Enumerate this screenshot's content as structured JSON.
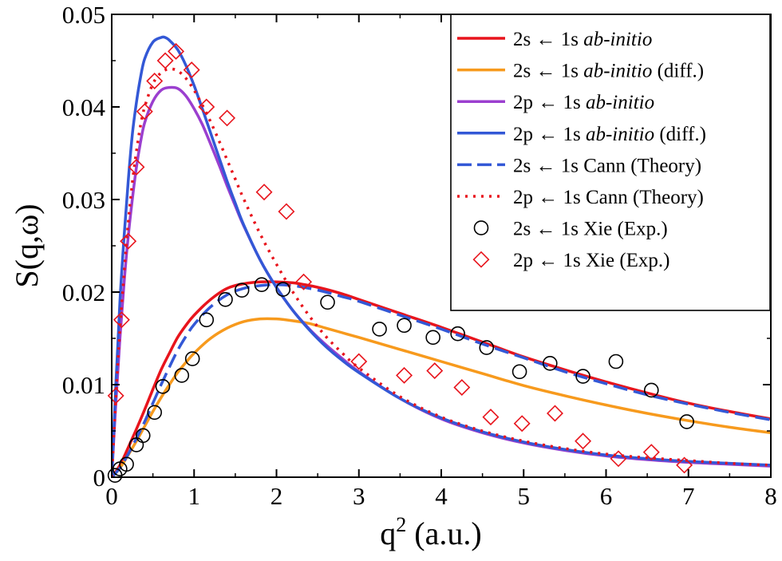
{
  "chart_data": {
    "type": "line",
    "xlabel": "q",
    "xlabel_superscript": "2",
    "xlabel_suffix": " (a.u.)",
    "ylabel": "S(q,ω)",
    "xlim": [
      0,
      8
    ],
    "ylim": [
      0,
      0.05
    ],
    "xticks": [
      0,
      1,
      2,
      3,
      4,
      5,
      6,
      7,
      8
    ],
    "xtick_labels": [
      "0",
      "1",
      "2",
      "3",
      "4",
      "5",
      "6",
      "7",
      "8"
    ],
    "yticks": [
      0,
      0.01,
      0.02,
      0.03,
      0.04,
      0.05
    ],
    "ytick_labels": [
      "0",
      "0.01",
      "0.02",
      "0.03",
      "0.04",
      "0.05"
    ],
    "grid": false,
    "legend_position": "top-right",
    "series": [
      {
        "name": "2s ← 1s ab-initio",
        "name_parts": [
          "2s ← 1s ",
          "ab-initio",
          ""
        ],
        "kind": "line",
        "style": "solid",
        "color": "#e8141c",
        "x": [
          0,
          0.1,
          0.2,
          0.3,
          0.4,
          0.5,
          0.6,
          0.7,
          0.8,
          0.9,
          1.0,
          1.2,
          1.4,
          1.6,
          1.8,
          2.0,
          2.2,
          2.4,
          2.6,
          2.8,
          3.0,
          3.5,
          4.0,
          4.5,
          5.0,
          5.5,
          6.0,
          6.5,
          7.0,
          7.5,
          8.0
        ],
        "y": [
          0,
          0.0013,
          0.0032,
          0.0052,
          0.0073,
          0.0095,
          0.0116,
          0.0134,
          0.0151,
          0.0164,
          0.0175,
          0.0192,
          0.0204,
          0.0209,
          0.0211,
          0.0211,
          0.021,
          0.0207,
          0.0203,
          0.0198,
          0.0192,
          0.0177,
          0.0162,
          0.0146,
          0.013,
          0.0116,
          0.0103,
          0.0091,
          0.008,
          0.0071,
          0.0063
        ]
      },
      {
        "name": "2s ← 1s ab-initio (diff.)",
        "name_parts": [
          "2s ← 1s ",
          "ab-initio",
          " (diff.)"
        ],
        "kind": "line",
        "style": "solid",
        "color": "#f79a1d",
        "x": [
          0,
          0.1,
          0.2,
          0.3,
          0.4,
          0.5,
          0.6,
          0.7,
          0.8,
          0.9,
          1.0,
          1.2,
          1.4,
          1.6,
          1.8,
          2.0,
          2.2,
          2.4,
          2.6,
          2.8,
          3.0,
          3.5,
          4.0,
          4.5,
          5.0,
          5.5,
          6.0,
          6.5,
          7.0,
          7.5,
          8.0
        ],
        "y": [
          0,
          0.001,
          0.0024,
          0.0039,
          0.0055,
          0.0071,
          0.0086,
          0.01,
          0.0113,
          0.0124,
          0.0134,
          0.015,
          0.0161,
          0.0168,
          0.0171,
          0.0171,
          0.0169,
          0.0166,
          0.0161,
          0.0156,
          0.0151,
          0.0138,
          0.0125,
          0.0112,
          0.0099,
          0.0088,
          0.0078,
          0.0069,
          0.0061,
          0.0054,
          0.0048
        ]
      },
      {
        "name": "2p ← 1s ab-initio",
        "name_parts": [
          "2p ← 1s ",
          "ab-initio",
          ""
        ],
        "kind": "line",
        "style": "solid",
        "color": "#9b3fcf",
        "x": [
          0,
          0.05,
          0.1,
          0.15,
          0.2,
          0.25,
          0.3,
          0.35,
          0.4,
          0.5,
          0.6,
          0.7,
          0.8,
          0.9,
          1.0,
          1.1,
          1.2,
          1.3,
          1.4,
          1.5,
          1.6,
          1.8,
          2.0,
          2.2,
          2.4,
          2.6,
          2.8,
          3.0,
          3.5,
          4.0,
          4.5,
          5.0,
          5.5,
          6.0,
          6.5,
          7.0,
          7.5,
          8.0
        ],
        "y": [
          0,
          0.008,
          0.015,
          0.021,
          0.026,
          0.03,
          0.0335,
          0.0362,
          0.0383,
          0.0406,
          0.0418,
          0.0421,
          0.042,
          0.0412,
          0.0398,
          0.0381,
          0.036,
          0.0338,
          0.0315,
          0.0293,
          0.0272,
          0.0235,
          0.0205,
          0.018,
          0.016,
          0.0143,
          0.0128,
          0.0114,
          0.0085,
          0.0063,
          0.0048,
          0.0037,
          0.0029,
          0.0023,
          0.0019,
          0.0016,
          0.0014,
          0.0012
        ]
      },
      {
        "name": "2p ← 1s ab-initio (diff.)",
        "name_parts": [
          "2p ← 1s ",
          "ab-initio",
          " (diff.)"
        ],
        "kind": "line",
        "style": "solid",
        "color": "#3358d6",
        "x": [
          0,
          0.05,
          0.1,
          0.15,
          0.2,
          0.25,
          0.3,
          0.35,
          0.4,
          0.5,
          0.6,
          0.65,
          0.7,
          0.8,
          0.9,
          1.0,
          1.1,
          1.2,
          1.3,
          1.4,
          1.5,
          1.6,
          1.8,
          2.0,
          2.2,
          2.4,
          2.6,
          2.8,
          3.0,
          3.5,
          4.0,
          4.5,
          5.0,
          5.5,
          6.0,
          6.5,
          7.0,
          7.5,
          8.0
        ],
        "y": [
          0,
          0.01,
          0.019,
          0.026,
          0.032,
          0.037,
          0.0405,
          0.0432,
          0.0452,
          0.047,
          0.0475,
          0.0475,
          0.0472,
          0.0462,
          0.0445,
          0.0423,
          0.0398,
          0.0372,
          0.0346,
          0.032,
          0.0296,
          0.0273,
          0.0235,
          0.0205,
          0.018,
          0.0159,
          0.0141,
          0.0126,
          0.0113,
          0.0085,
          0.0064,
          0.0049,
          0.0038,
          0.003,
          0.0024,
          0.002,
          0.0017,
          0.0015,
          0.0013
        ]
      },
      {
        "name": "2s ← 1s Cann (Theory)",
        "name_parts": [
          "2s ← 1s Cann (Theory)",
          "",
          ""
        ],
        "kind": "line",
        "style": "dashed",
        "color": "#3358d6",
        "x": [
          0,
          0.1,
          0.2,
          0.3,
          0.4,
          0.5,
          0.6,
          0.7,
          0.8,
          0.9,
          1.0,
          1.2,
          1.4,
          1.6,
          1.8,
          2.0,
          2.2,
          2.4,
          2.6,
          2.8,
          3.0,
          3.5,
          4.0,
          4.5,
          5.0,
          5.5,
          6.0,
          6.5,
          7.0,
          7.5,
          8.0
        ],
        "y": [
          0,
          0.001,
          0.0025,
          0.0042,
          0.006,
          0.008,
          0.01,
          0.0119,
          0.0137,
          0.0152,
          0.0165,
          0.0184,
          0.0197,
          0.0204,
          0.0207,
          0.0208,
          0.0207,
          0.0204,
          0.02,
          0.0195,
          0.019,
          0.0175,
          0.016,
          0.0144,
          0.0129,
          0.0114,
          0.0101,
          0.0089,
          0.0079,
          0.007,
          0.0062
        ]
      },
      {
        "name": "2p ← 1s Cann (Theory)",
        "name_parts": [
          "2p ← 1s Cann (Theory)",
          "",
          ""
        ],
        "kind": "line",
        "style": "dotted",
        "color": "#e8141c",
        "x": [
          0,
          0.05,
          0.1,
          0.15,
          0.2,
          0.25,
          0.3,
          0.35,
          0.4,
          0.5,
          0.6,
          0.7,
          0.8,
          0.9,
          1.0,
          1.1,
          1.2,
          1.3,
          1.4,
          1.5,
          1.6,
          1.8,
          2.0,
          2.2,
          2.4,
          2.6,
          2.8,
          3.0,
          3.5,
          4.0,
          4.5,
          5.0,
          5.5,
          6.0,
          6.5,
          7.0,
          7.5,
          8.0
        ],
        "y": [
          0,
          0.0085,
          0.016,
          0.022,
          0.0275,
          0.0318,
          0.0352,
          0.038,
          0.04,
          0.0425,
          0.0437,
          0.0441,
          0.0439,
          0.0431,
          0.0418,
          0.0402,
          0.0384,
          0.0364,
          0.0343,
          0.0322,
          0.0301,
          0.0263,
          0.023,
          0.02,
          0.0174,
          0.0152,
          0.0134,
          0.0118,
          0.0087,
          0.0065,
          0.005,
          0.0039,
          0.0031,
          0.0025,
          0.0021,
          0.0018,
          0.0015,
          0.0013
        ]
      },
      {
        "name": "2s ← 1s Xie (Exp.)",
        "name_parts": [
          "2s ← 1s Xie (Exp.)",
          "",
          ""
        ],
        "kind": "markers",
        "marker": "circle",
        "color": "#000000",
        "x": [
          0.04,
          0.1,
          0.18,
          0.3,
          0.38,
          0.52,
          0.62,
          0.85,
          0.98,
          1.15,
          1.38,
          1.58,
          1.82,
          2.08,
          2.62,
          3.25,
          3.55,
          3.9,
          4.2,
          4.55,
          4.95,
          5.32,
          5.72,
          6.12,
          6.55,
          6.98
        ],
        "y": [
          0.0002,
          0.0009,
          0.0014,
          0.0035,
          0.0045,
          0.007,
          0.0098,
          0.011,
          0.0128,
          0.017,
          0.0192,
          0.0202,
          0.0208,
          0.0203,
          0.0189,
          0.016,
          0.0164,
          0.0151,
          0.0155,
          0.014,
          0.0114,
          0.0123,
          0.0109,
          0.0125,
          0.0094,
          0.006
        ]
      },
      {
        "name": "2p ← 1s Xie (Exp.)",
        "name_parts": [
          "2p ← 1s Xie (Exp.)",
          "",
          ""
        ],
        "kind": "markers",
        "marker": "diamond",
        "color": "#e8141c",
        "x": [
          0.05,
          0.12,
          0.2,
          0.3,
          0.4,
          0.52,
          0.65,
          0.78,
          0.97,
          1.15,
          1.4,
          1.85,
          2.12,
          2.33,
          3.0,
          3.55,
          3.92,
          4.25,
          4.6,
          4.98,
          5.38,
          5.72,
          6.15,
          6.55,
          6.95
        ],
        "y": [
          0.0088,
          0.017,
          0.0255,
          0.0335,
          0.0395,
          0.0428,
          0.045,
          0.046,
          0.044,
          0.04,
          0.0388,
          0.0308,
          0.0287,
          0.0211,
          0.0125,
          0.011,
          0.0115,
          0.0097,
          0.0065,
          0.0058,
          0.0069,
          0.0039,
          0.002,
          0.0027,
          0.0013
        ]
      }
    ]
  }
}
